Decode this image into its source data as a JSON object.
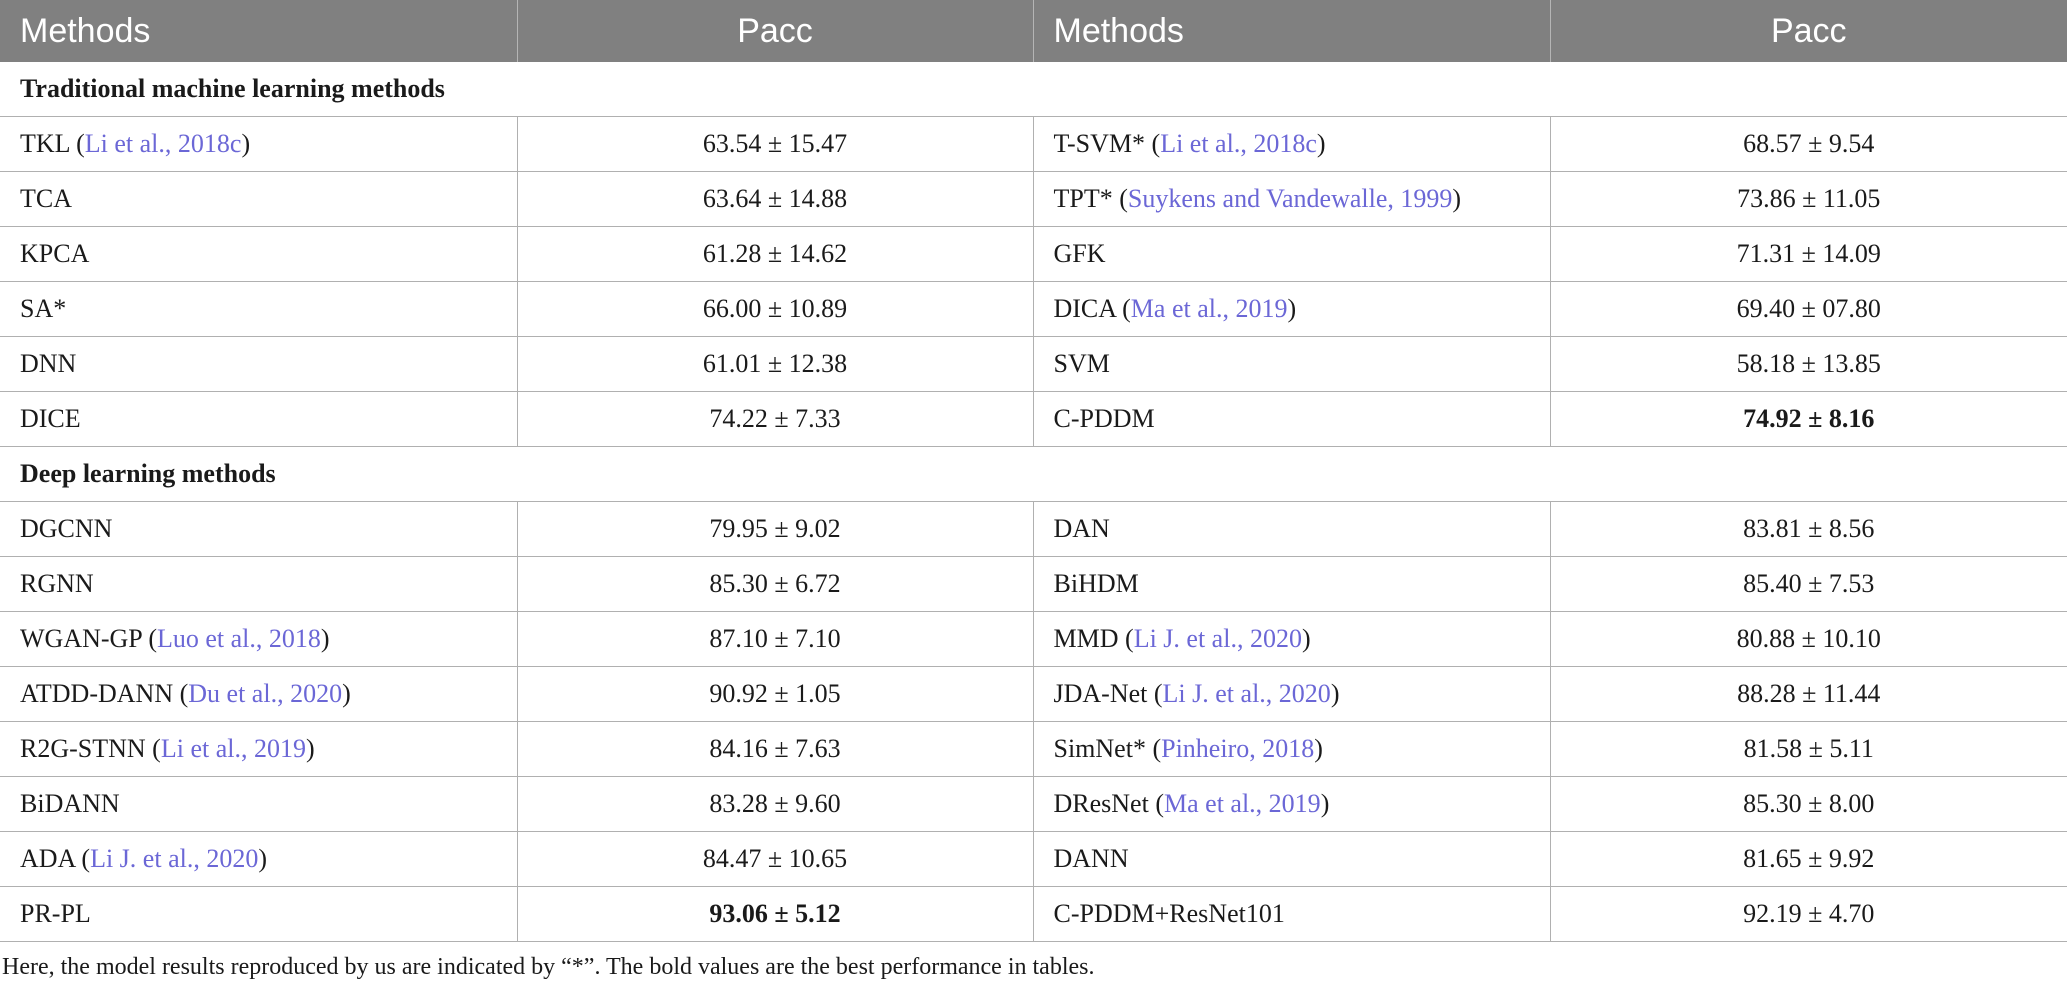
{
  "headers": [
    "Methods",
    "Pacc",
    "Methods",
    "Pacc"
  ],
  "sections": [
    {
      "title": "Traditional machine learning methods",
      "rows": [
        {
          "m1": "TKL",
          "r1": "Li et al., 2018c",
          "v1": "63.54 ± 15.47",
          "b1": false,
          "m2": "T-SVM*",
          "r2": "Li et al., 2018c",
          "v2": "68.57 ± 9.54",
          "b2": false
        },
        {
          "m1": "TCA",
          "r1": "",
          "v1": "63.64 ± 14.88",
          "b1": false,
          "m2": "TPT*",
          "r2": "Suykens and Vandewalle, 1999",
          "v2": "73.86 ± 11.05",
          "b2": false
        },
        {
          "m1": "KPCA",
          "r1": "",
          "v1": "61.28 ± 14.62",
          "b1": false,
          "m2": "GFK",
          "r2": "",
          "v2": "71.31 ± 14.09",
          "b2": false
        },
        {
          "m1": "SA*",
          "r1": "",
          "v1": "66.00 ± 10.89",
          "b1": false,
          "m2": "DICA",
          "r2": "Ma et al., 2019",
          "v2": "69.40 ± 07.80",
          "b2": false
        },
        {
          "m1": "DNN",
          "r1": "",
          "v1": "61.01 ± 12.38",
          "b1": false,
          "m2": "SVM",
          "r2": "",
          "v2": "58.18 ± 13.85",
          "b2": false
        },
        {
          "m1": "DICE",
          "r1": "",
          "v1": "74.22 ± 7.33",
          "b1": false,
          "m2": "C-PDDM",
          "r2": "",
          "v2": "74.92 ± 8.16",
          "b2": true
        }
      ]
    },
    {
      "title": "Deep learning methods",
      "rows": [
        {
          "m1": "DGCNN",
          "r1": "",
          "v1": "79.95 ± 9.02",
          "b1": false,
          "m2": "DAN",
          "r2": "",
          "v2": "83.81 ± 8.56",
          "b2": false
        },
        {
          "m1": "RGNN",
          "r1": "",
          "v1": "85.30 ± 6.72",
          "b1": false,
          "m2": "BiHDM",
          "r2": "",
          "v2": "85.40 ± 7.53",
          "b2": false
        },
        {
          "m1": "WGAN-GP",
          "r1": "Luo et al., 2018",
          "v1": "87.10 ± 7.10",
          "b1": false,
          "m2": "MMD",
          "r2": "Li J. et al., 2020",
          "v2": "80.88 ± 10.10",
          "b2": false
        },
        {
          "m1": "ATDD-DANN",
          "r1": "Du et al., 2020",
          "v1": "90.92 ± 1.05",
          "b1": false,
          "m2": "JDA-Net",
          "r2": "Li J. et al., 2020",
          "v2": "88.28 ± 11.44",
          "b2": false
        },
        {
          "m1": "R2G-STNN",
          "r1": "Li et al., 2019",
          "v1": "84.16 ± 7.63",
          "b1": false,
          "m2": "SimNet*",
          "r2": "Pinheiro, 2018",
          "v2": "81.58 ± 5.11",
          "b2": false
        },
        {
          "m1": "BiDANN",
          "r1": "",
          "v1": "83.28 ± 9.60",
          "b1": false,
          "m2": "DResNet",
          "r2": "Ma et al., 2019",
          "v2": "85.30 ± 8.00",
          "b2": false
        },
        {
          "m1": "ADA",
          "r1": "Li J. et al., 2020",
          "v1": "84.47 ± 10.65",
          "b1": false,
          "m2": "DANN",
          "r2": "",
          "v2": "81.65 ± 9.92",
          "b2": false
        },
        {
          "m1": "PR-PL",
          "r1": "",
          "v1": "93.06 ± 5.12",
          "b1": true,
          "m2": "C-PDDM+ResNet101",
          "r2": "",
          "v2": "92.19 ± 4.70",
          "b2": false
        }
      ]
    }
  ],
  "footnote": "Here, the model results reproduced by us are indicated by “*”. The bold values are the best performance in tables."
}
